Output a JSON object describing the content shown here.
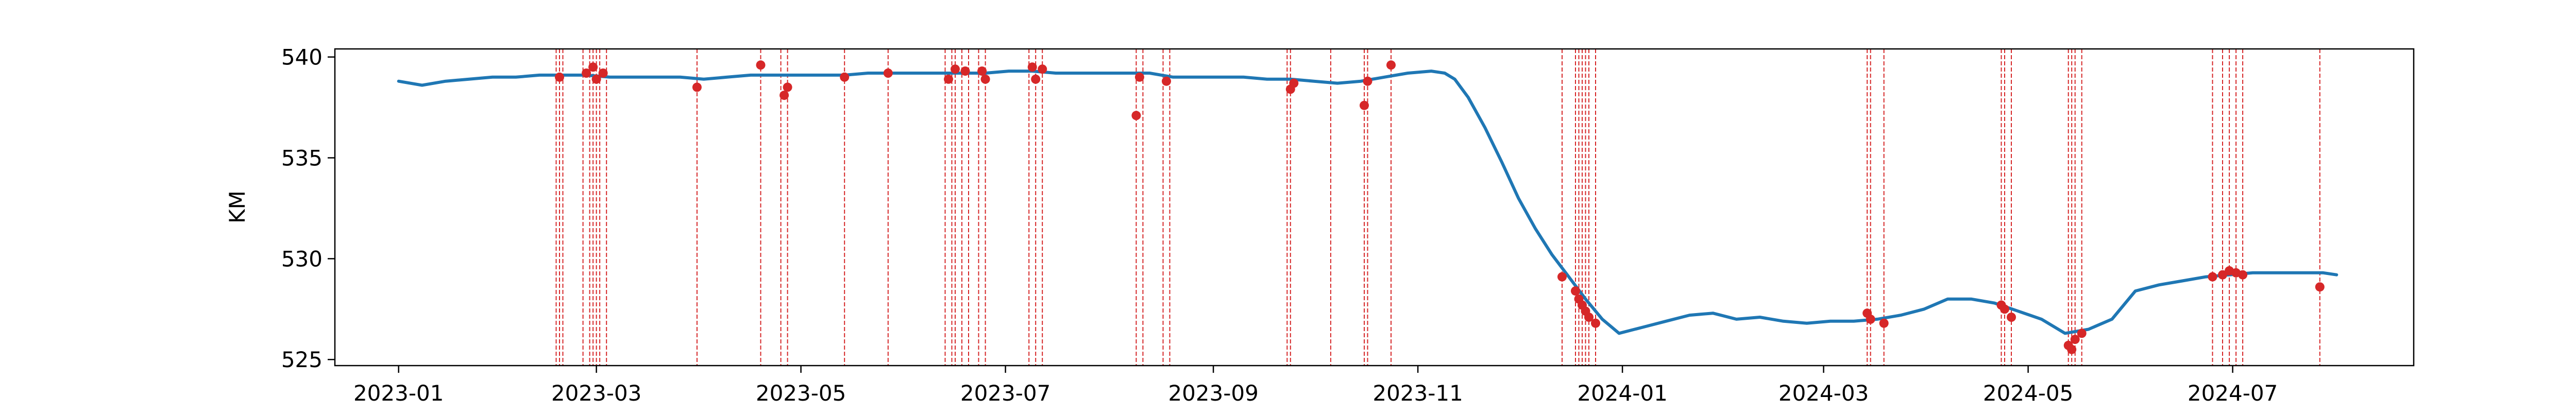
{
  "chart_data": {
    "type": "line",
    "title": "",
    "xlabel": "",
    "ylabel": "KM",
    "xlim": [
      "2022-12-13",
      "2024-08-24"
    ],
    "ylim": [
      524.7,
      540.4
    ],
    "x_tick_labels": [
      "2023-01",
      "2023-03",
      "2023-05",
      "2023-07",
      "2023-09",
      "2023-11",
      "2024-01",
      "2024-03",
      "2024-05",
      "2024-07"
    ],
    "x_tick_dates": [
      "2023-01-01",
      "2023-03-01",
      "2023-05-01",
      "2023-07-01",
      "2023-09-01",
      "2023-11-01",
      "2024-01-01",
      "2024-03-01",
      "2024-05-01",
      "2024-07-01"
    ],
    "y_ticks": [
      525,
      530,
      535,
      540
    ],
    "grid": false,
    "legend": "none",
    "colors": {
      "line": "#1f77b4",
      "marker": "#d62728",
      "vline": "#d62728"
    },
    "series": [
      {
        "values": [
          [
            "2023-01-01",
            538.8
          ],
          [
            "2023-01-08",
            538.6
          ],
          [
            "2023-01-15",
            538.8
          ],
          [
            "2023-01-22",
            538.9
          ],
          [
            "2023-01-29",
            539.0
          ],
          [
            "2023-02-05",
            539.0
          ],
          [
            "2023-02-12",
            539.1
          ],
          [
            "2023-02-19",
            539.1
          ],
          [
            "2023-02-26",
            539.1
          ],
          [
            "2023-03-05",
            539.0
          ],
          [
            "2023-03-12",
            539.0
          ],
          [
            "2023-03-19",
            539.0
          ],
          [
            "2023-03-26",
            539.0
          ],
          [
            "2023-04-02",
            538.9
          ],
          [
            "2023-04-09",
            539.0
          ],
          [
            "2023-04-16",
            539.1
          ],
          [
            "2023-04-23",
            539.1
          ],
          [
            "2023-04-30",
            539.1
          ],
          [
            "2023-05-07",
            539.1
          ],
          [
            "2023-05-14",
            539.1
          ],
          [
            "2023-05-21",
            539.2
          ],
          [
            "2023-05-28",
            539.2
          ],
          [
            "2023-06-04",
            539.2
          ],
          [
            "2023-06-11",
            539.2
          ],
          [
            "2023-06-18",
            539.2
          ],
          [
            "2023-06-25",
            539.2
          ],
          [
            "2023-07-02",
            539.3
          ],
          [
            "2023-07-09",
            539.3
          ],
          [
            "2023-07-16",
            539.2
          ],
          [
            "2023-07-23",
            539.2
          ],
          [
            "2023-07-30",
            539.2
          ],
          [
            "2023-08-06",
            539.2
          ],
          [
            "2023-08-13",
            539.2
          ],
          [
            "2023-08-20",
            539.0
          ],
          [
            "2023-08-27",
            539.0
          ],
          [
            "2023-09-03",
            539.0
          ],
          [
            "2023-09-10",
            539.0
          ],
          [
            "2023-09-17",
            538.9
          ],
          [
            "2023-09-24",
            538.9
          ],
          [
            "2023-10-01",
            538.8
          ],
          [
            "2023-10-08",
            538.7
          ],
          [
            "2023-10-15",
            538.8
          ],
          [
            "2023-10-22",
            539.0
          ],
          [
            "2023-10-29",
            539.2
          ],
          [
            "2023-11-05",
            539.3
          ],
          [
            "2023-11-09",
            539.2
          ],
          [
            "2023-11-12",
            538.9
          ],
          [
            "2023-11-16",
            538.0
          ],
          [
            "2023-11-21",
            536.5
          ],
          [
            "2023-11-26",
            534.8
          ],
          [
            "2023-12-01",
            533.0
          ],
          [
            "2023-12-06",
            531.5
          ],
          [
            "2023-12-11",
            530.2
          ],
          [
            "2023-12-16",
            529.1
          ],
          [
            "2023-12-21",
            528.0
          ],
          [
            "2023-12-26",
            527.0
          ],
          [
            "2023-12-31",
            526.3
          ],
          [
            "2024-01-07",
            526.6
          ],
          [
            "2024-01-14",
            526.9
          ],
          [
            "2024-01-21",
            527.2
          ],
          [
            "2024-01-28",
            527.3
          ],
          [
            "2024-02-04",
            527.0
          ],
          [
            "2024-02-11",
            527.1
          ],
          [
            "2024-02-18",
            526.9
          ],
          [
            "2024-02-25",
            526.8
          ],
          [
            "2024-03-03",
            526.9
          ],
          [
            "2024-03-10",
            526.9
          ],
          [
            "2024-03-17",
            527.0
          ],
          [
            "2024-03-24",
            527.2
          ],
          [
            "2024-03-31",
            527.5
          ],
          [
            "2024-04-07",
            528.0
          ],
          [
            "2024-04-14",
            528.0
          ],
          [
            "2024-04-21",
            527.8
          ],
          [
            "2024-04-28",
            527.4
          ],
          [
            "2024-05-05",
            527.0
          ],
          [
            "2024-05-12",
            526.3
          ],
          [
            "2024-05-19",
            526.5
          ],
          [
            "2024-05-26",
            527.0
          ],
          [
            "2024-06-02",
            528.4
          ],
          [
            "2024-06-09",
            528.7
          ],
          [
            "2024-06-16",
            528.9
          ],
          [
            "2024-06-23",
            529.1
          ],
          [
            "2024-06-30",
            529.2
          ],
          [
            "2024-07-07",
            529.3
          ],
          [
            "2024-07-14",
            529.3
          ],
          [
            "2024-07-21",
            529.3
          ],
          [
            "2024-07-28",
            529.3
          ],
          [
            "2024-08-01",
            529.2
          ]
        ]
      }
    ],
    "event_dates": [
      "2023-02-17",
      "2023-02-18",
      "2023-02-19",
      "2023-02-25",
      "2023-02-27",
      "2023-02-28",
      "2023-03-01",
      "2023-03-02",
      "2023-03-04",
      "2023-03-31",
      "2023-04-19",
      "2023-04-25",
      "2023-04-27",
      "2023-05-14",
      "2023-05-27",
      "2023-06-13",
      "2023-06-15",
      "2023-06-16",
      "2023-06-18",
      "2023-06-20",
      "2023-06-23",
      "2023-06-25",
      "2023-07-08",
      "2023-07-10",
      "2023-07-12",
      "2023-08-09",
      "2023-08-11",
      "2023-08-17",
      "2023-08-19",
      "2023-09-23",
      "2023-09-24",
      "2023-10-06",
      "2023-10-16",
      "2023-10-17",
      "2023-10-24",
      "2023-12-14",
      "2023-12-18",
      "2023-12-19",
      "2023-12-20",
      "2023-12-21",
      "2023-12-22",
      "2023-12-24",
      "2024-03-14",
      "2024-03-15",
      "2024-03-19",
      "2024-04-23",
      "2024-04-24",
      "2024-04-26",
      "2024-05-13",
      "2024-05-14",
      "2024-05-15",
      "2024-05-17",
      "2024-06-25",
      "2024-06-28",
      "2024-06-30",
      "2024-07-02",
      "2024-07-04",
      "2024-07-27"
    ],
    "event_points": [
      [
        "2023-02-18",
        539.0
      ],
      [
        "2023-02-26",
        539.2
      ],
      [
        "2023-02-28",
        539.5
      ],
      [
        "2023-03-01",
        538.9
      ],
      [
        "2023-03-03",
        539.2
      ],
      [
        "2023-03-31",
        538.5
      ],
      [
        "2023-04-19",
        539.6
      ],
      [
        "2023-04-26",
        538.1
      ],
      [
        "2023-04-27",
        538.5
      ],
      [
        "2023-05-14",
        539.0
      ],
      [
        "2023-05-27",
        539.2
      ],
      [
        "2023-06-14",
        538.9
      ],
      [
        "2023-06-16",
        539.4
      ],
      [
        "2023-06-19",
        539.3
      ],
      [
        "2023-06-24",
        539.3
      ],
      [
        "2023-06-25",
        538.9
      ],
      [
        "2023-07-09",
        539.5
      ],
      [
        "2023-07-10",
        538.9
      ],
      [
        "2023-07-12",
        539.4
      ],
      [
        "2023-08-09",
        537.1
      ],
      [
        "2023-08-10",
        539.0
      ],
      [
        "2023-08-18",
        538.8
      ],
      [
        "2023-09-24",
        538.4
      ],
      [
        "2023-09-25",
        538.7
      ],
      [
        "2023-10-16",
        537.6
      ],
      [
        "2023-10-17",
        538.8
      ],
      [
        "2023-10-24",
        539.6
      ],
      [
        "2023-12-14",
        529.1
      ],
      [
        "2023-12-18",
        528.4
      ],
      [
        "2023-12-19",
        528.0
      ],
      [
        "2023-12-20",
        527.7
      ],
      [
        "2023-12-21",
        527.4
      ],
      [
        "2023-12-22",
        527.1
      ],
      [
        "2023-12-24",
        526.8
      ],
      [
        "2024-03-14",
        527.3
      ],
      [
        "2024-03-15",
        527.0
      ],
      [
        "2024-03-19",
        526.8
      ],
      [
        "2024-04-23",
        527.7
      ],
      [
        "2024-04-24",
        527.5
      ],
      [
        "2024-04-26",
        527.1
      ],
      [
        "2024-05-13",
        525.7
      ],
      [
        "2024-05-14",
        525.5
      ],
      [
        "2024-05-15",
        526.0
      ],
      [
        "2024-05-17",
        526.3
      ],
      [
        "2024-06-25",
        529.1
      ],
      [
        "2024-06-28",
        529.2
      ],
      [
        "2024-06-30",
        529.4
      ],
      [
        "2024-07-02",
        529.3
      ],
      [
        "2024-07-04",
        529.2
      ],
      [
        "2024-07-27",
        528.6
      ]
    ]
  }
}
